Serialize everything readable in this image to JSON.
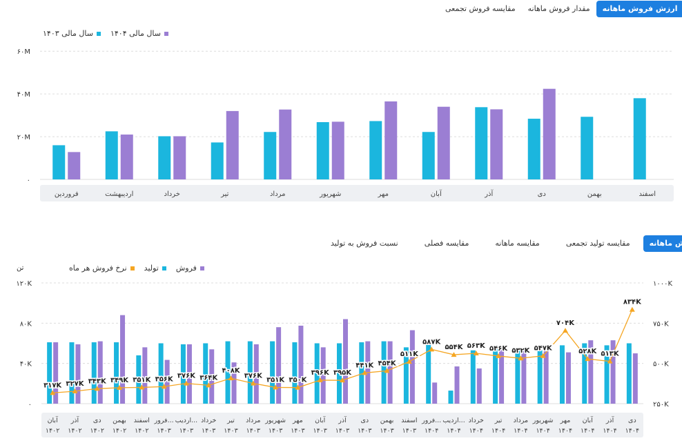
{
  "top_tabs": [
    {
      "label": "مقایسه فروش تجمعی",
      "active": false
    },
    {
      "label": "مقدار فروش ماهانه",
      "active": false
    },
    {
      "label": "ارزش فروش ماهانه",
      "active": true
    }
  ],
  "top_legend": [
    {
      "label": "سال مالی ۱۴۰۳",
      "color": "#1bb6de"
    },
    {
      "label": "سال مالی ۱۴۰۴",
      "color": "#9b7ed3"
    }
  ],
  "bottom_tabs": [
    {
      "label": "نسبت فروش به تولید",
      "active": false
    },
    {
      "label": "مقایسه فصلی",
      "active": false
    },
    {
      "label": "مقایسه ماهانه",
      "active": false
    },
    {
      "label": "مقایسه تولید تجمعی",
      "active": false
    },
    {
      "label": "فروش ماهانه",
      "active": true
    }
  ],
  "bottom_legend": [
    {
      "label": "نرخ فروش هر ماه",
      "color": "#f5a623"
    },
    {
      "label": "تولید",
      "color": "#1bb6de"
    },
    {
      "label": "فروش",
      "color": "#9b7ed3"
    }
  ],
  "bottom_units": {
    "left": "تن"
  },
  "chart_data": [
    {
      "type": "bar",
      "categories": [
        "فروردین",
        "اردیبهشت",
        "خرداد",
        "تیر",
        "مرداد",
        "شهریور",
        "مهر",
        "آبان",
        "آذر",
        "دی",
        "بهمن",
        "اسفند"
      ],
      "series": [
        {
          "name": "سال مالی ۱۴۰۳",
          "color": "#1bb6de",
          "values": [
            16,
            22.5,
            20.2,
            17.3,
            22.2,
            26.8,
            27.3,
            22.2,
            33.8,
            28.4,
            29.3,
            38
          ]
        },
        {
          "name": "سال مالی ۱۴۰۴",
          "color": "#9b7ed3",
          "values": [
            12.8,
            21,
            20.2,
            32,
            32.7,
            27,
            36.5,
            34,
            32.8,
            42.4,
            null,
            null
          ]
        }
      ],
      "yticks": [
        "۰",
        "۲۰M",
        "۴۰M",
        "۶۰M"
      ],
      "ylim": [
        0,
        62
      ],
      "grid": true
    },
    {
      "type": "bar+line",
      "categories": [
        "آبان ۱۴۰۲",
        "آذر ۱۴۰۲",
        "دی ۱۴۰۲",
        "بهمن ۱۴۰۲",
        "اسفند ۱۴۰۲",
        "فرور... ۱۴۰۳",
        "اردیب... ۱۴۰۳",
        "خرداد ۱۴۰۳",
        "تیر ۱۴۰۳",
        "مرداد ۱۴۰۳",
        "شهریور ۱۴۰۳",
        "مهر ۱۴۰۳",
        "آبان ۱۴۰۳",
        "آذر ۱۴۰۳",
        "دی ۱۴۰۳",
        "بهمن ۱۴۰۳",
        "اسفند ۱۴۰۳",
        "فرور... ۱۴۰۴",
        "اردیب... ۱۴۰۴",
        "خرداد ۱۴۰۴",
        "تیر ۱۴۰۴",
        "مرداد ۱۴۰۴",
        "شهریور ۱۴۰۴",
        "مهر ۱۴۰۴",
        "آبان ۱۴۰۴",
        "آذر ۱۴۰۴",
        "دی ۱۴۰۴"
      ],
      "series": [
        {
          "name": "تولید",
          "color": "#1bb6de",
          "values": [
            61000,
            61000,
            61000,
            61000,
            48000,
            60000,
            59000,
            60000,
            62000,
            62000,
            62000,
            61000,
            60000,
            60000,
            61000,
            62000,
            56000,
            60000,
            13000,
            53000,
            54000,
            53000,
            53000,
            58000,
            60000,
            58000,
            60000
          ]
        },
        {
          "name": "فروش",
          "color": "#9b7ed3",
          "values": [
            61000,
            59000,
            62000,
            88000,
            56000,
            43500,
            59000,
            54000,
            41000,
            59000,
            76000,
            77500,
            56000,
            84000,
            62000,
            62000,
            73000,
            21000,
            37000,
            35000,
            54000,
            53000,
            52000,
            51000,
            63000,
            63000,
            50000
          ]
        }
      ],
      "line": {
        "name": "نرخ فروش هر ماه",
        "color": "#f5a623",
        "values": [
          317,
          327,
          343,
          349,
          351,
          356,
          376,
          364,
          408,
          376,
          351,
          350,
          396,
          395,
          441,
          454,
          511,
          587,
          554,
          563,
          546,
          532,
          547,
          704,
          528,
          513,
          834
        ],
        "labels": [
          "۳۱۷K",
          "۳۲۷K",
          "۳۴۳K",
          "۳۴۹K",
          "۳۵۱K",
          "۳۵۶K",
          "۳۷۶K",
          "۳۶۴K",
          "۴۰۸K",
          "۳۷۶K",
          "۳۵۱K",
          "۳۵۰K",
          "۳۹۶K",
          "۳۹۵K",
          "۴۴۱K",
          "۴۵۴K",
          "۵۱۱K",
          "۵۸۷K",
          "۵۵۴K",
          "۵۶۳K",
          "۵۴۶K",
          "۵۳۲K",
          "۵۴۷K",
          "۷۰۴K",
          "۵۲۸K",
          "۵۱۳K",
          "۸۳۴K"
        ]
      },
      "yticks_left": [
        "۰",
        "۴۰K",
        "۸۰K",
        "۱۲۰K"
      ],
      "ylim_left": [
        0,
        120000
      ],
      "yticks_right": [
        "۲۵۰K",
        "۵۰۰K",
        "۷۵۰K",
        "۱۰۰۰K"
      ],
      "ylim_right": [
        250,
        1000
      ],
      "grid": true
    }
  ]
}
